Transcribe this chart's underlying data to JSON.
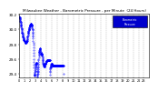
{
  "title": "Milwaukee Weather - Barometric Pressure - per Minute",
  "subtitle": "(24 Hours)",
  "ylim": [
    29.35,
    30.22
  ],
  "xlim": [
    0,
    1440
  ],
  "yticks": [
    29.4,
    29.6,
    29.8,
    30.0,
    30.2
  ],
  "ytick_labels": [
    "29.4",
    "29.6",
    "29.8",
    "30.0",
    "30.2"
  ],
  "xtick_positions": [
    0,
    60,
    120,
    180,
    240,
    300,
    360,
    420,
    480,
    540,
    600,
    660,
    720,
    780,
    840,
    900,
    960,
    1020,
    1080,
    1140,
    1200,
    1260,
    1320,
    1380
  ],
  "xtick_labels": [
    "0",
    "1",
    "2",
    "3",
    "4",
    "5",
    "6",
    "7",
    "8",
    "9",
    "10",
    "11",
    "12",
    "13",
    "14",
    "15",
    "16",
    "17",
    "18",
    "19",
    "20",
    "21",
    "22",
    "23"
  ],
  "grid_color": "#999999",
  "dot_color": "#0000ff",
  "bg_color": "#ffffff",
  "legend_color": "#0000cc",
  "pressure_data": [
    30.18,
    30.17,
    30.17,
    30.16,
    30.16,
    30.15,
    30.15,
    30.14,
    30.14,
    30.13,
    30.12,
    30.12,
    30.11,
    30.1,
    30.1,
    30.09,
    30.08,
    30.07,
    30.07,
    30.06,
    30.05,
    30.05,
    30.04,
    30.03,
    30.02,
    30.02,
    30.01,
    30.0,
    29.99,
    29.98,
    29.97,
    29.96,
    29.96,
    29.95,
    29.95,
    29.94,
    29.93,
    29.93,
    29.92,
    29.91,
    29.91,
    29.9,
    29.9,
    29.89,
    29.89,
    29.88,
    29.88,
    29.87,
    29.87,
    29.87,
    29.86,
    29.86,
    29.86,
    29.86,
    29.85,
    29.85,
    29.85,
    29.85,
    29.85,
    29.84,
    29.84,
    29.84,
    29.84,
    29.84,
    29.83,
    29.83,
    29.83,
    29.82,
    29.82,
    29.82,
    29.82,
    29.82,
    29.82,
    29.82,
    29.82,
    29.83,
    29.83,
    29.83,
    29.83,
    29.83,
    29.84,
    29.84,
    29.84,
    29.85,
    29.85,
    29.85,
    29.86,
    29.87,
    29.87,
    29.88,
    29.89,
    29.9,
    29.9,
    29.91,
    29.92,
    29.93,
    29.94,
    29.95,
    29.95,
    29.96,
    29.97,
    29.97,
    29.98,
    29.98,
    29.99,
    29.99,
    30.0,
    30.0,
    30.01,
    30.01,
    30.02,
    30.02,
    30.03,
    30.03,
    30.04,
    30.04,
    30.05,
    30.05,
    30.05,
    30.06,
    30.06,
    30.06,
    30.07,
    30.07,
    30.07,
    30.07,
    30.07,
    30.08,
    30.08,
    30.08,
    30.08,
    30.08,
    30.08,
    30.07,
    30.07,
    30.07,
    30.07,
    30.06,
    30.06,
    30.05,
    30.05,
    30.04,
    30.03,
    30.02,
    30.01,
    30.0,
    29.99,
    29.97,
    29.96,
    29.94,
    29.92,
    29.9,
    29.88,
    29.85,
    29.82,
    29.79,
    29.76,
    29.72,
    29.68,
    29.64,
    29.6,
    29.56,
    29.52,
    29.48,
    29.45,
    29.42,
    29.4,
    29.38,
    29.37,
    29.37,
    29.38,
    29.38,
    29.39,
    29.41,
    29.43,
    29.44,
    29.46,
    29.47,
    29.49,
    29.5,
    29.51,
    29.52,
    29.53,
    29.54,
    29.54,
    29.55,
    29.55,
    29.55,
    29.55,
    29.55,
    29.54,
    29.53,
    29.52,
    29.5,
    29.48,
    29.46,
    29.44,
    29.42,
    29.4,
    29.38,
    29.36,
    29.34,
    29.36,
    29.38,
    29.4,
    29.42,
    29.44,
    29.46,
    29.48,
    29.5,
    29.52,
    29.54,
    29.56,
    29.58,
    29.6,
    29.62,
    29.64,
    29.66,
    29.67,
    29.68,
    29.69,
    29.7,
    29.7,
    29.71,
    29.72,
    29.72,
    29.73,
    29.73,
    29.74,
    29.74,
    29.74,
    29.74,
    29.73,
    29.72,
    29.71,
    29.7,
    29.69,
    29.68,
    29.67,
    29.67,
    29.67,
    29.67,
    29.67,
    29.67,
    29.67,
    29.67,
    29.67,
    29.67,
    29.67,
    29.67,
    29.66,
    29.66,
    29.66,
    29.65,
    29.64,
    29.63,
    29.62,
    29.61,
    29.6,
    29.59,
    29.58,
    29.57,
    29.56,
    29.55,
    29.54,
    29.54,
    29.53,
    29.53,
    29.52,
    29.52,
    29.52,
    29.52,
    29.51,
    29.51,
    29.5,
    29.5,
    29.5,
    29.5,
    29.5,
    29.5,
    29.5,
    29.51,
    29.51,
    29.52,
    29.52,
    29.53,
    29.53,
    29.53,
    29.54,
    29.54,
    29.54,
    29.54,
    29.55,
    29.55,
    29.55,
    29.56,
    29.56,
    29.57,
    29.57,
    29.57,
    29.57,
    29.57,
    29.57,
    29.57,
    29.57,
    29.58,
    29.58,
    29.58,
    29.58,
    29.58,
    29.58,
    29.58,
    29.58,
    29.58,
    29.58,
    29.58,
    29.58,
    29.58,
    29.58,
    29.58,
    29.58,
    29.58,
    29.58,
    29.58,
    29.58,
    29.58,
    29.58,
    29.58,
    29.58,
    29.58,
    29.58,
    29.58,
    29.58,
    29.58,
    29.58,
    29.58,
    29.58,
    29.58,
    29.58,
    29.39,
    29.42,
    29.44,
    29.46,
    29.47,
    29.48,
    29.48,
    29.49,
    29.5,
    29.5,
    29.5,
    29.51,
    29.51,
    29.52,
    29.52,
    29.53,
    29.53,
    29.54,
    29.54,
    29.54,
    29.54,
    29.54,
    29.54,
    29.54,
    29.53,
    29.53,
    29.52,
    29.52,
    29.51,
    29.51,
    29.51,
    29.51,
    29.51,
    29.51,
    29.51,
    29.51,
    29.51,
    29.51,
    29.51,
    29.51,
    29.51,
    29.51,
    29.51,
    29.51,
    29.51,
    29.51,
    29.51,
    29.51,
    29.51,
    29.51,
    29.51,
    29.51,
    29.51,
    29.51,
    29.51,
    29.51,
    29.51,
    29.51,
    29.51,
    29.51,
    29.51,
    29.51,
    29.51,
    29.51,
    29.51,
    29.51,
    29.51,
    29.51,
    29.51,
    29.51,
    29.51,
    29.51,
    29.51,
    29.51,
    29.51,
    29.51,
    29.51,
    29.51,
    29.51,
    29.51,
    29.51,
    29.51,
    29.51,
    29.51,
    29.51,
    29.51,
    29.51,
    29.51,
    29.51,
    29.51,
    29.51,
    29.51,
    29.51,
    29.51,
    29.51,
    29.51,
    29.51,
    29.51,
    29.51,
    29.51,
    29.51,
    29.51,
    29.51,
    29.51,
    29.51,
    29.51,
    29.51,
    29.51,
    29.51,
    29.51,
    29.51,
    29.51,
    29.51,
    29.51,
    29.51,
    29.51,
    29.51,
    29.51,
    29.51,
    29.51,
    29.51,
    29.51,
    29.51,
    29.51,
    29.51,
    29.51,
    29.51,
    29.51,
    29.51,
    29.51,
    29.51,
    29.51,
    29.51,
    29.51,
    29.51,
    29.51,
    29.51,
    29.51,
    29.51,
    29.51,
    29.51,
    29.51,
    29.51,
    29.51,
    29.51,
    29.51,
    29.51,
    29.51,
    29.51,
    29.51,
    29.4
  ]
}
